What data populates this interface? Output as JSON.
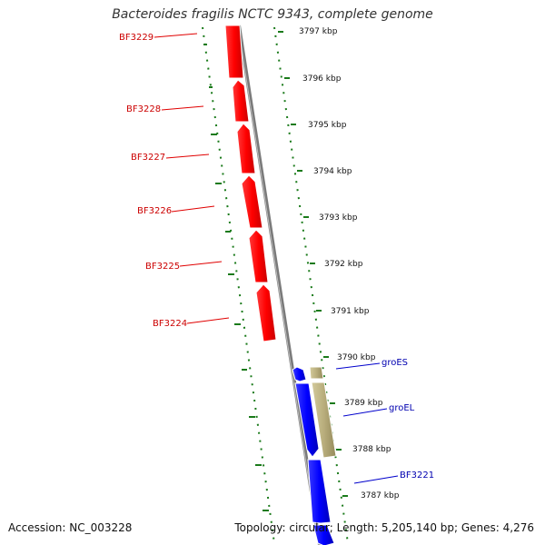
{
  "title": "Bacteroides fragilis NCTC 9343, complete genome",
  "accession": "Accession: NC_003228",
  "topology": "Topology: circular; Length: 5,205,140 bp; Genes: 4,276",
  "scale_labels": [
    "3797 kbp",
    "3796 kbp",
    "3795 kbp",
    "3794 kbp",
    "3793 kbp",
    "3792 kbp",
    "3791 kbp",
    "3790 kbp",
    "3789 kbp",
    "3788 kbp",
    "3787 kbp"
  ],
  "genes_left": [
    {
      "name": "BF3229",
      "color": "#e60000"
    },
    {
      "name": "BF3228",
      "color": "#e60000"
    },
    {
      "name": "BF3227",
      "color": "#e60000"
    },
    {
      "name": "BF3226",
      "color": "#e60000"
    },
    {
      "name": "BF3225",
      "color": "#e60000"
    },
    {
      "name": "BF3224",
      "color": "#e60000"
    }
  ],
  "genes_right": [
    {
      "name": "groES",
      "color": "#0000cc"
    },
    {
      "name": "groEL",
      "color": "#0000cc"
    },
    {
      "name": "BF3221",
      "color": "#0000cc"
    }
  ],
  "colors": {
    "forward_gene": "#ff0000",
    "reverse_gene": "#0000ff",
    "operon_block": "#b5aa78",
    "backbone": "#888888",
    "ruler": "#1a7a1a"
  }
}
